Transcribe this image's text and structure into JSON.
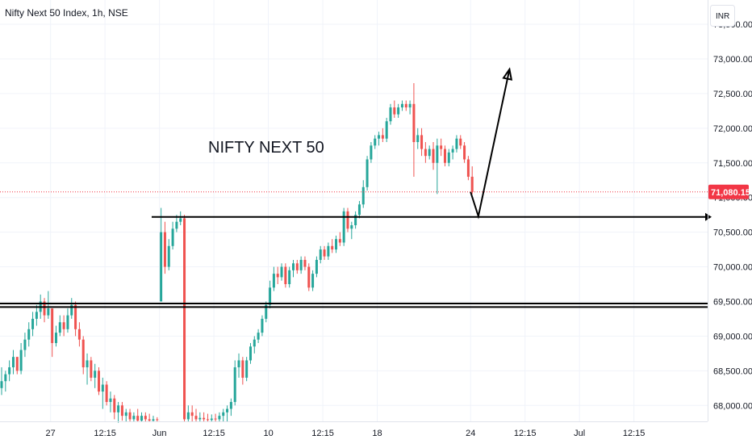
{
  "header": {
    "title": "Nifty Next 50 Index, 1h, NSE"
  },
  "currency_badge": {
    "label": "INR"
  },
  "annotation": {
    "text": "NIFTY NEXT 50"
  },
  "colors": {
    "up": "#26a69a",
    "down": "#ef5350",
    "last_price": "#f23645",
    "grid": "#f0f3fa",
    "axis_text": "#131722",
    "drawing": "#000000"
  },
  "chart_data": {
    "type": "candlestick",
    "title": "Nifty Next 50 Index, 1h, NSE",
    "y_tick_labels": [
      "68,000.00",
      "68,500.00",
      "69,000.00",
      "69,500.00",
      "70,000.00",
      "70,500.00",
      "71,000.00",
      "71,500.00",
      "72,000.00",
      "72,500.00",
      "73,000.00",
      "73,500.00"
    ],
    "y_ticks": [
      68000,
      68500,
      69000,
      69500,
      70000,
      70500,
      71000,
      71500,
      72000,
      72500,
      73000,
      73500
    ],
    "ylim": [
      67770,
      73850
    ],
    "x_tick_labels": [
      {
        "label": "27",
        "index": 13
      },
      {
        "label": "12:15",
        "index": 27
      },
      {
        "label": "Jun",
        "index": 41
      },
      {
        "label": "12:15",
        "index": 55
      },
      {
        "label": "10",
        "index": 69
      },
      {
        "label": "12:15",
        "index": 83
      },
      {
        "label": "18",
        "index": 97
      },
      {
        "label": "24",
        "index": 121
      },
      {
        "label": "12:15",
        "index": 135
      },
      {
        "label": "Jul",
        "index": 149
      },
      {
        "label": "12:15",
        "index": 163
      }
    ],
    "x_count": 170,
    "last_price": 71080.15,
    "last_price_label": "71,080.15",
    "grid": true,
    "horizontal_lines": [
      {
        "y": 70720,
        "x_start_index": 39,
        "arrow": true
      },
      {
        "y": 69470,
        "x_start_index": 0,
        "arrow": false
      },
      {
        "y": 69420,
        "x_start_index": 0,
        "arrow": false
      }
    ],
    "path_drawing": [
      {
        "x": 121,
        "y": 71080
      },
      {
        "x": 123,
        "y": 70730
      },
      {
        "x": 131,
        "y": 72850
      }
    ],
    "candles": [
      [
        68250,
        68550,
        68150,
        68350
      ],
      [
        68350,
        68500,
        68200,
        68450
      ],
      [
        68450,
        68650,
        68350,
        68550
      ],
      [
        68550,
        68800,
        68450,
        68700
      ],
      [
        68700,
        68700,
        68450,
        68500
      ],
      [
        68500,
        68900,
        68450,
        68800
      ],
      [
        68800,
        69050,
        68700,
        68950
      ],
      [
        68950,
        69200,
        68850,
        69100
      ],
      [
        69100,
        69350,
        69000,
        69250
      ],
      [
        69250,
        69450,
        69150,
        69350
      ],
      [
        69350,
        69600,
        69250,
        69500
      ],
      [
        69500,
        69550,
        69200,
        69300
      ],
      [
        69300,
        69650,
        69250,
        69400
      ],
      [
        69400,
        69400,
        68700,
        68900
      ],
      [
        68900,
        69150,
        68850,
        69050
      ],
      [
        69050,
        69300,
        69000,
        69200
      ],
      [
        69200,
        69300,
        69000,
        69100
      ],
      [
        69100,
        69400,
        69050,
        69300
      ],
      [
        69300,
        69550,
        69250,
        69450
      ],
      [
        69450,
        69500,
        69000,
        69100
      ],
      [
        69100,
        69200,
        68850,
        68950
      ],
      [
        68950,
        69000,
        68450,
        68550
      ],
      [
        68550,
        68750,
        68300,
        68650
      ],
      [
        68650,
        68700,
        68350,
        68400
      ],
      [
        68400,
        68600,
        68250,
        68500
      ],
      [
        68500,
        68550,
        68150,
        68200
      ],
      [
        68200,
        68400,
        67950,
        68300
      ],
      [
        68300,
        68350,
        68000,
        68050
      ],
      [
        68050,
        68200,
        67900,
        68100
      ],
      [
        68100,
        68150,
        67800,
        67900
      ],
      [
        67900,
        68050,
        67750,
        68000
      ],
      [
        68000,
        68050,
        67780,
        67850
      ],
      [
        67850,
        67950,
        67770,
        67900
      ],
      [
        67900,
        67950,
        67770,
        67800
      ],
      [
        67800,
        67900,
        67770,
        67850
      ],
      [
        67850,
        67950,
        67770,
        67780
      ],
      [
        67780,
        67900,
        67770,
        67850
      ],
      [
        67850,
        67900,
        67770,
        67800
      ],
      [
        67800,
        67880,
        67770,
        67780
      ],
      [
        67780,
        67850,
        67770,
        67800
      ],
      [
        67800,
        67830,
        67770,
        67790
      ],
      [
        69500,
        70850,
        69500,
        70500
      ],
      [
        70500,
        70650,
        69900,
        70000
      ],
      [
        70000,
        70400,
        69950,
        70300
      ],
      [
        70300,
        70650,
        70250,
        70550
      ],
      [
        70550,
        70750,
        70500,
        70650
      ],
      [
        70650,
        70800,
        70600,
        70700
      ],
      [
        70700,
        70750,
        67770,
        67800
      ],
      [
        67800,
        68000,
        67770,
        67900
      ],
      [
        67900,
        68000,
        67770,
        67850
      ],
      [
        67850,
        67950,
        67770,
        67800
      ],
      [
        67800,
        67900,
        67770,
        67820
      ],
      [
        67820,
        67900,
        67770,
        67800
      ],
      [
        67800,
        67880,
        67770,
        67790
      ],
      [
        67790,
        67870,
        67770,
        67810
      ],
      [
        67810,
        67880,
        67770,
        67800
      ],
      [
        67800,
        67900,
        67770,
        67850
      ],
      [
        67850,
        67950,
        67770,
        67900
      ],
      [
        67900,
        68000,
        67770,
        67950
      ],
      [
        67950,
        68100,
        67850,
        68050
      ],
      [
        68050,
        68650,
        68000,
        68550
      ],
      [
        68550,
        68750,
        68400,
        68650
      ],
      [
        68650,
        68700,
        68300,
        68400
      ],
      [
        68400,
        68700,
        68350,
        68650
      ],
      [
        68650,
        68900,
        68600,
        68850
      ],
      [
        68850,
        69000,
        68750,
        68950
      ],
      [
        68950,
        69100,
        68900,
        69050
      ],
      [
        69050,
        69300,
        69000,
        69250
      ],
      [
        69250,
        69500,
        69200,
        69450
      ],
      [
        69450,
        69800,
        69400,
        69700
      ],
      [
        69700,
        70000,
        69650,
        69900
      ],
      [
        69900,
        70000,
        69750,
        69850
      ],
      [
        69850,
        70050,
        69800,
        70000
      ],
      [
        70000,
        70050,
        69700,
        69750
      ],
      [
        69750,
        70000,
        69700,
        69950
      ],
      [
        69950,
        70100,
        69850,
        70050
      ],
      [
        70050,
        70100,
        69900,
        69950
      ],
      [
        69950,
        70150,
        69900,
        70100
      ],
      [
        70100,
        70150,
        69950,
        70000
      ],
      [
        70000,
        70050,
        69650,
        69700
      ],
      [
        69700,
        69950,
        69650,
        69900
      ],
      [
        69900,
        70150,
        69850,
        70100
      ],
      [
        70100,
        70300,
        70050,
        70250
      ],
      [
        70250,
        70300,
        70100,
        70150
      ],
      [
        70150,
        70350,
        70100,
        70300
      ],
      [
        70300,
        70400,
        70200,
        70250
      ],
      [
        70250,
        70450,
        70200,
        70400
      ],
      [
        70400,
        70500,
        70300,
        70350
      ],
      [
        70350,
        70850,
        70300,
        70800
      ],
      [
        70800,
        70850,
        70500,
        70550
      ],
      [
        70550,
        70650,
        70400,
        70600
      ],
      [
        70600,
        70800,
        70550,
        70750
      ],
      [
        70750,
        70950,
        70700,
        70900
      ],
      [
        70900,
        71250,
        70850,
        71150
      ],
      [
        71150,
        71600,
        71100,
        71550
      ],
      [
        71550,
        71800,
        71500,
        71750
      ],
      [
        71750,
        71900,
        71700,
        71850
      ],
      [
        71850,
        71950,
        71750,
        71900
      ],
      [
        71900,
        72000,
        71800,
        71850
      ],
      [
        71850,
        72150,
        71800,
        72100
      ],
      [
        72100,
        72350,
        72050,
        72300
      ],
      [
        72300,
        72400,
        72150,
        72200
      ],
      [
        72200,
        72350,
        72150,
        72300
      ],
      [
        72300,
        72400,
        72250,
        72350
      ],
      [
        72350,
        72400,
        72250,
        72300
      ],
      [
        72300,
        72400,
        72200,
        72350
      ],
      [
        72350,
        72650,
        71300,
        71800
      ],
      [
        71800,
        72000,
        71700,
        71900
      ],
      [
        71900,
        72000,
        71600,
        71700
      ],
      [
        71700,
        71800,
        71500,
        71600
      ],
      [
        71600,
        71750,
        71550,
        71700
      ],
      [
        71700,
        71800,
        71400,
        71500
      ],
      [
        71500,
        71850,
        71050,
        71750
      ],
      [
        71750,
        71850,
        71600,
        71700
      ],
      [
        71700,
        71750,
        71450,
        71500
      ],
      [
        71500,
        71700,
        71450,
        71650
      ],
      [
        71650,
        71750,
        71550,
        71700
      ],
      [
        71700,
        71900,
        71650,
        71850
      ],
      [
        71850,
        71900,
        71700,
        71750
      ],
      [
        71750,
        71800,
        71500,
        71550
      ],
      [
        71550,
        71600,
        71250,
        71300
      ],
      [
        71300,
        71450,
        71050,
        71080.15
      ]
    ]
  }
}
